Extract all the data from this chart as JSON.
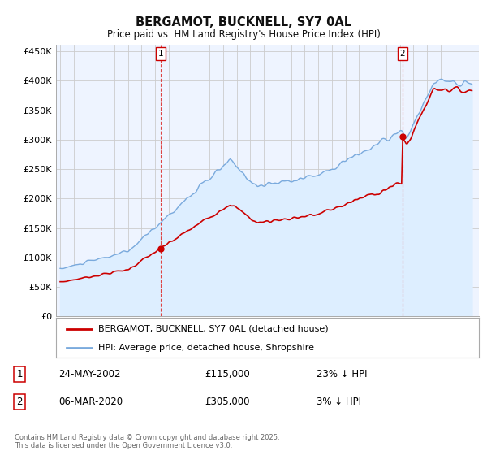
{
  "title": "BERGAMOT, BUCKNELL, SY7 0AL",
  "subtitle": "Price paid vs. HM Land Registry's House Price Index (HPI)",
  "legend1": "BERGAMOT, BUCKNELL, SY7 0AL (detached house)",
  "legend2": "HPI: Average price, detached house, Shropshire",
  "sale1_date": "24-MAY-2002",
  "sale1_price": "£115,000",
  "sale1_hpi": "23% ↓ HPI",
  "sale2_date": "06-MAR-2020",
  "sale2_price": "£305,000",
  "sale2_hpi": "3% ↓ HPI",
  "footer": "Contains HM Land Registry data © Crown copyright and database right 2025.\nThis data is licensed under the Open Government Licence v3.0.",
  "ylabel_ticks": [
    "£0",
    "£50K",
    "£100K",
    "£150K",
    "£200K",
    "£250K",
    "£300K",
    "£350K",
    "£400K",
    "£450K"
  ],
  "ytick_values": [
    0,
    50000,
    100000,
    150000,
    200000,
    250000,
    300000,
    350000,
    400000,
    450000
  ],
  "ylim": [
    0,
    460000
  ],
  "xlim_start": 1994.7,
  "xlim_end": 2025.8,
  "sale1_x": 2002.39,
  "sale1_y": 115000,
  "sale2_x": 2020.18,
  "sale2_y": 305000,
  "property_color": "#cc0000",
  "hpi_color": "#7aaadd",
  "hpi_fill_color": "#ddeeff",
  "marker_box_color": "#cc0000",
  "vline_color": "#dd4444",
  "background_color": "#ffffff",
  "grid_color": "#cccccc",
  "plot_bg_color": "#eef4ff"
}
